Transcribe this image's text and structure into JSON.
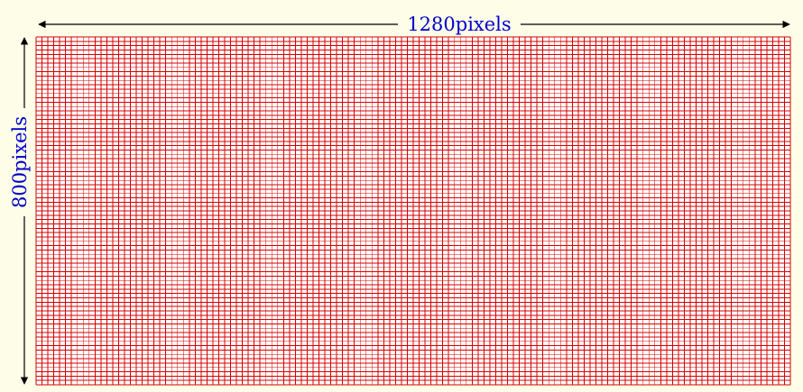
{
  "width_label": "1280pixels",
  "height_label": "800pixels",
  "grid": {
    "columns": 128,
    "rows": 80,
    "description_colors": {
      "grid_line": "#d60000",
      "grid_fill": "#ffffff",
      "label": "#0000cc",
      "arrow": "#000000",
      "background": "#fdfde8"
    }
  }
}
